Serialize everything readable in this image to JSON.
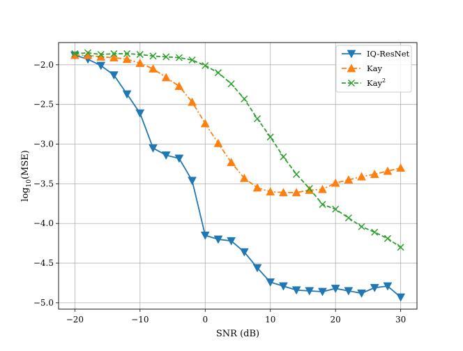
{
  "chart_data": {
    "type": "line",
    "title": "",
    "xlabel": "SNR (dB)",
    "ylabel": {
      "base": "log",
      "sub": "10",
      "rest": "(MSE)"
    },
    "xlim": [
      -22.5,
      32.5
    ],
    "ylim": [
      -5.08,
      -1.72
    ],
    "xticks": [
      -20,
      -10,
      0,
      10,
      20,
      30
    ],
    "xtick_labels": [
      "−20",
      "−10",
      "0",
      "10",
      "20",
      "30"
    ],
    "yticks": [
      -2.0,
      -2.5,
      -3.0,
      -3.5,
      -4.0,
      -4.5,
      -5.0
    ],
    "ytick_labels": [
      "−2.0",
      "−2.5",
      "−3.0",
      "−3.5",
      "−4.0",
      "−4.5",
      "−5.0"
    ],
    "grid": true,
    "legend_position": "top-right",
    "x": [
      -20,
      -18,
      -16,
      -14,
      -12,
      -10,
      -8,
      -6,
      -4,
      -2,
      0,
      2,
      4,
      6,
      8,
      10,
      12,
      14,
      16,
      18,
      20,
      22,
      24,
      26,
      28,
      30
    ],
    "series": [
      {
        "name": "IQ-ResNet",
        "legend": {
          "text": "IQ-ResNet",
          "sup": ""
        },
        "color": "#1f77b4",
        "linestyle": "solid",
        "marker": "triangle-down",
        "values": [
          -1.88,
          -1.93,
          -2.01,
          -2.13,
          -2.37,
          -2.61,
          -3.05,
          -3.14,
          -3.18,
          -3.46,
          -4.15,
          -4.2,
          -4.22,
          -4.36,
          -4.56,
          -4.74,
          -4.79,
          -4.84,
          -4.85,
          -4.86,
          -4.82,
          -4.85,
          -4.88,
          -4.81,
          -4.79,
          -4.93
        ]
      },
      {
        "name": "Kay",
        "legend": {
          "text": "Kay",
          "sup": ""
        },
        "color": "#ff7f0e",
        "linestyle": "dashdot",
        "marker": "triangle-up",
        "values": [
          -1.88,
          -1.88,
          -1.9,
          -1.91,
          -1.93,
          -1.98,
          -2.05,
          -2.16,
          -2.27,
          -2.47,
          -2.74,
          -2.99,
          -3.23,
          -3.43,
          -3.55,
          -3.6,
          -3.61,
          -3.61,
          -3.58,
          -3.57,
          -3.49,
          -3.45,
          -3.41,
          -3.38,
          -3.34,
          -3.3
        ]
      },
      {
        "name": "Kay²",
        "legend": {
          "text": "Kay",
          "sup": "2"
        },
        "color": "#2ca02c",
        "linestyle": "dashed",
        "marker": "x",
        "values": [
          -1.86,
          -1.85,
          -1.87,
          -1.86,
          -1.86,
          -1.87,
          -1.89,
          -1.9,
          -1.91,
          -1.94,
          -2.01,
          -2.1,
          -2.24,
          -2.43,
          -2.68,
          -2.91,
          -3.16,
          -3.38,
          -3.56,
          -3.76,
          -3.82,
          -3.93,
          -4.04,
          -4.11,
          -4.19,
          -4.3
        ]
      }
    ]
  }
}
